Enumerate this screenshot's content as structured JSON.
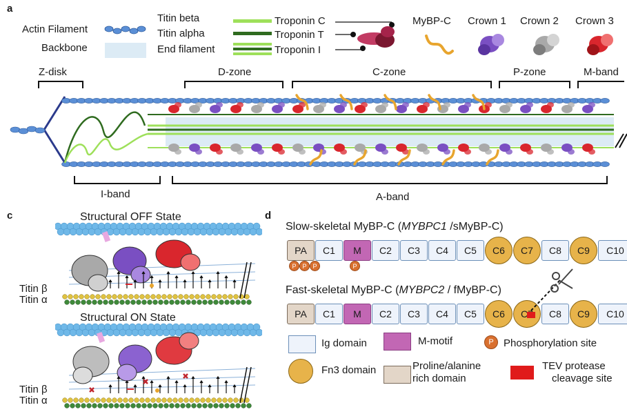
{
  "panel_a": {
    "letter": "a",
    "legend": {
      "actin_filament": "Actin Filament",
      "backbone": "Backbone",
      "titin_beta": "Titin beta",
      "titin_alpha": "Titin alpha",
      "end_filament": "End filament",
      "troponin_c": "Troponin C",
      "troponin_t": "Troponin T",
      "troponin_i": "Troponin I",
      "mybpc": "MyBP-C",
      "crown1": "Crown 1",
      "crown2": "Crown 2",
      "crown3": "Crown 3"
    },
    "zones": {
      "z_disk": "Z-disk",
      "d_zone": "D-zone",
      "c_zone": "C-zone",
      "p_zone": "P-zone",
      "m_band": "M-band",
      "i_band": "I-band",
      "a_band": "A-band"
    },
    "colors": {
      "actin": "#5b8fd6",
      "backbone": "#dcebf5",
      "titin_beta": "#9ee05a",
      "titin_alpha": "#2f6b1f",
      "mybpc": "#e8a52e",
      "crown1": "#7a4fc2",
      "crown2": "#a9a9a9",
      "crown3": "#d9262d",
      "troponin": "#a5234a"
    }
  },
  "panel_c": {
    "letter": "c",
    "off_title": "Structural OFF State",
    "on_title": "Structural ON State",
    "titin_beta": "Titin β",
    "titin_alpha": "Titin α"
  },
  "panel_d": {
    "letter": "d",
    "slow_title_pre": "Slow-skeletal MyBP-C (",
    "slow_title_gene": "MYBPC1",
    "slow_title_post": " /sMyBP-C)",
    "fast_title_pre": "Fast-skeletal MyBP-C (",
    "fast_title_gene": "MYBPC2",
    "fast_title_post": " / fMyBP-C)",
    "domains": [
      "PA",
      "C1",
      "M",
      "C2",
      "C3",
      "C4",
      "C5",
      "C6",
      "C7",
      "C8",
      "C9",
      "C10"
    ],
    "phos_label": "P",
    "legend": {
      "ig": "Ig domain",
      "mmotif": "M-motif",
      "phos": "Phosphorylation site",
      "fn3": "Fn3 domain",
      "pa_line1": "Proline/alanine",
      "pa_line2": "rich domain",
      "tev_line1": "TEV protease",
      "tev_line2": "cleavage site"
    }
  }
}
